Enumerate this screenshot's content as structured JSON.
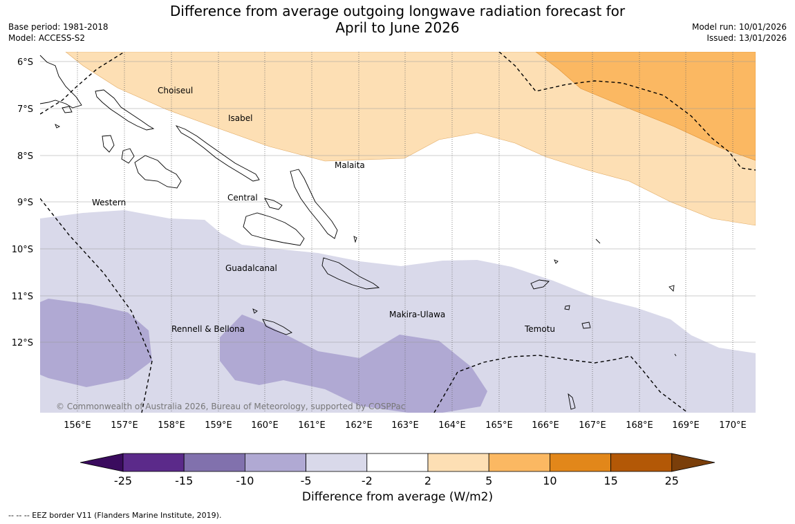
{
  "title_line1": "Difference from average outgoing longwave radiation forecast for",
  "title_line2": "April to June 2026",
  "meta_left": {
    "base_period": "Base period: 1981-2018",
    "model": "Model: ACCESS-S2"
  },
  "meta_right": {
    "model_run": "Model run: 10/01/2026",
    "issued": "Issued: 13/01/2026"
  },
  "latitudes": [
    "6°S",
    "7°S",
    "8°S",
    "9°S",
    "10°S",
    "11°S",
    "12°S"
  ],
  "longitudes": [
    "156°E",
    "157°E",
    "158°E",
    "159°E",
    "160°E",
    "161°E",
    "162°E",
    "163°E",
    "164°E",
    "165°E",
    "166°E",
    "167°E",
    "168°E",
    "169°E",
    "170°E"
  ],
  "places": {
    "choiseul": "Choiseul",
    "isabel": "Isabel",
    "malaita": "Malaita",
    "western": "Western",
    "central": "Central",
    "guadalcanal": "Guadalcanal",
    "makira": "Makira-Ulawa",
    "temotu": "Temotu",
    "rennell": "Rennell & Bellona"
  },
  "copyright": "© Commonwealth of Australia 2026, Bureau of Meteorology, supported by COSPPac",
  "colorbar": {
    "ticks": [
      "-25",
      "-15",
      "-10",
      "-5",
      "-2",
      "2",
      "5",
      "10",
      "15",
      "25"
    ],
    "colors": {
      "below": "#3a0b5e",
      "c1": "#5b2a8a",
      "c2": "#8171ad",
      "c3": "#b0a9d3",
      "c4": "#d9d9ea",
      "c5": "#ffffff",
      "c6": "#fddfb4",
      "c7": "#fbb862",
      "c8": "#e2871a",
      "c9": "#b35806",
      "above": "#7a3e0a"
    },
    "title": "Difference from average (W/m2)"
  },
  "footnote": "--  --  -- EEZ border V11 (Flanders Marine Institute, 2019)."
}
